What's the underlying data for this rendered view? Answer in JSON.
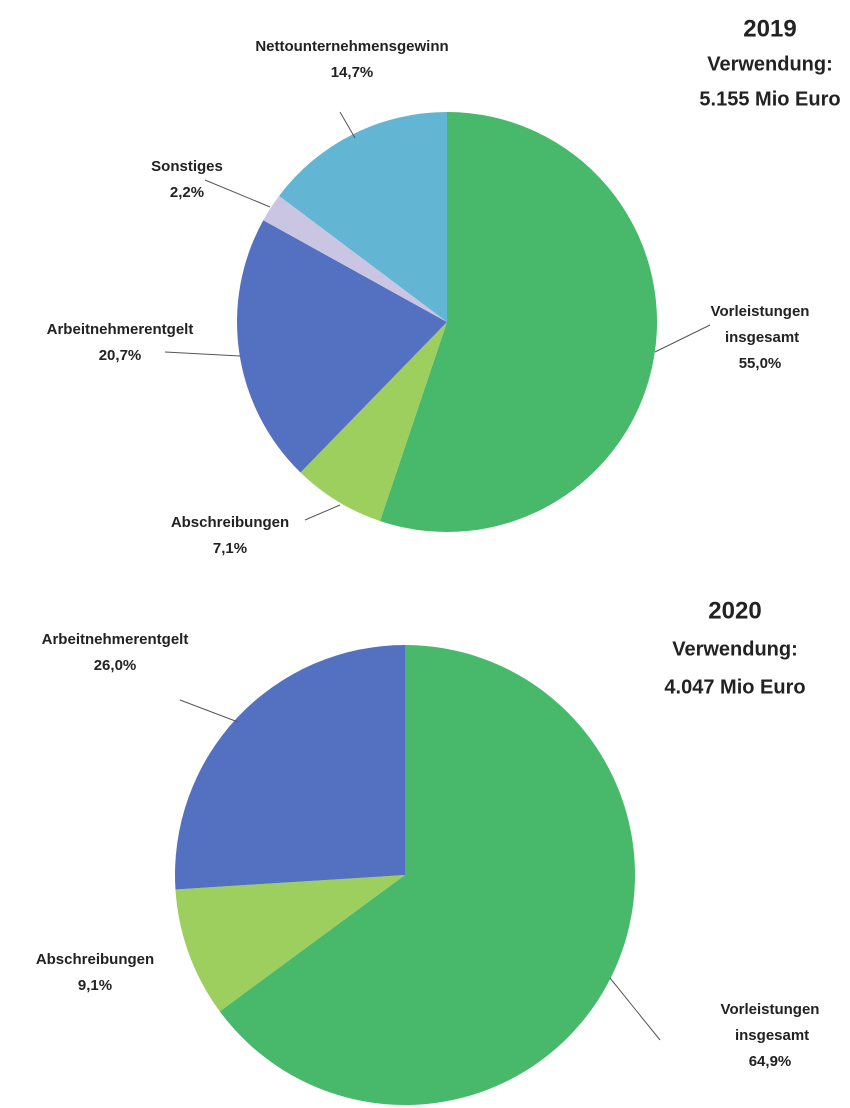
{
  "chart_data": [
    {
      "type": "pie",
      "title": "2019",
      "subtitle": [
        "Verwendung:",
        "5.155 Mio Euro"
      ],
      "categories": [
        "Vorleistungen insgesamt",
        "Abschreibungen",
        "Arbeitnehmerentgelt",
        "Sonstiges",
        "Nettounternehmensgewinn"
      ],
      "values": [
        55.0,
        7.1,
        20.7,
        2.2,
        14.7
      ],
      "value_labels": [
        "55,0%",
        "7,1%",
        "20,7%",
        "2,2%",
        "14,7%"
      ],
      "colors": [
        "#48b86a",
        "#9ccf5e",
        "#5470c0",
        "#cbc5e4",
        "#62b5d3"
      ]
    },
    {
      "type": "pie",
      "title": "2020",
      "subtitle": [
        "Verwendung:",
        "4.047 Mio Euro"
      ],
      "categories": [
        "Vorleistungen insgesamt",
        "Abschreibungen",
        "Arbeitnehmerentgelt"
      ],
      "values": [
        64.9,
        9.1,
        26.0
      ],
      "value_labels": [
        "64,9%",
        "9,1%",
        "26,0%"
      ],
      "colors": [
        "#48b86a",
        "#9ccf5e",
        "#5470c0"
      ]
    }
  ]
}
